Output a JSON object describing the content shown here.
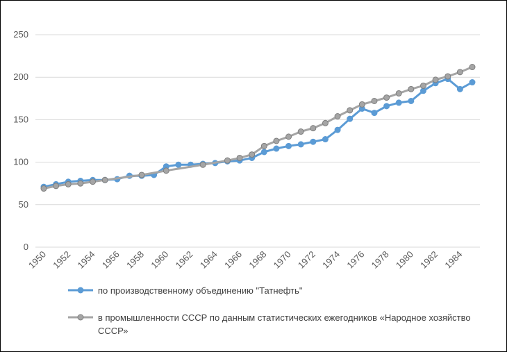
{
  "chart_data": {
    "type": "line",
    "y_ticks": [
      "0",
      "50",
      "100",
      "150",
      "200",
      "250"
    ],
    "ylim": [
      0,
      250
    ],
    "xlim": [
      1950,
      1985
    ],
    "x_tick_labels": [
      "1950",
      "1952",
      "1954",
      "1956",
      "1958",
      "1960",
      "1962",
      "1964",
      "1966",
      "1968",
      "1970",
      "1972",
      "1974",
      "1976",
      "1978",
      "1980",
      "1982",
      "1984"
    ],
    "grid": "horizontal",
    "legend_position": "bottom",
    "series": [
      {
        "name": "по производственному объединению \"Татнефть\"",
        "color": "#5b9bd5",
        "x": [
          1950,
          1951,
          1952,
          1953,
          1954,
          1955,
          1956,
          1957,
          1958,
          1959,
          1960,
          1961,
          1962,
          1963,
          1964,
          1965,
          1966,
          1967,
          1968,
          1969,
          1970,
          1971,
          1972,
          1973,
          1974,
          1975,
          1976,
          1977,
          1978,
          1979,
          1980,
          1981,
          1982,
          1983,
          1984,
          1985
        ],
        "y": [
          71,
          74,
          77,
          78,
          79,
          79,
          80,
          84,
          84,
          85,
          95,
          97,
          97,
          98,
          99,
          101,
          102,
          105,
          112,
          116,
          119,
          121,
          124,
          127,
          138,
          151,
          163,
          158,
          166,
          170,
          172,
          184,
          193,
          198,
          186,
          194
        ]
      },
      {
        "name": "в промышленности СССР по данным статистических ежегодников «Народное хозяйство СССР»",
        "color": "#a5a5a5",
        "x": [
          1950,
          1951,
          1952,
          1953,
          1954,
          1955,
          1958,
          1960,
          1963,
          1965,
          1966,
          1967,
          1968,
          1969,
          1970,
          1971,
          1972,
          1973,
          1974,
          1975,
          1976,
          1977,
          1978,
          1979,
          1980,
          1981,
          1982,
          1983,
          1984,
          1985
        ],
        "y": [
          69,
          72,
          74,
          75,
          77,
          79,
          85,
          90,
          97,
          102,
          105,
          109,
          119,
          125,
          130,
          136,
          140,
          146,
          154,
          161,
          168,
          172,
          176,
          181,
          186,
          190,
          197,
          201,
          206,
          212
        ]
      }
    ]
  }
}
